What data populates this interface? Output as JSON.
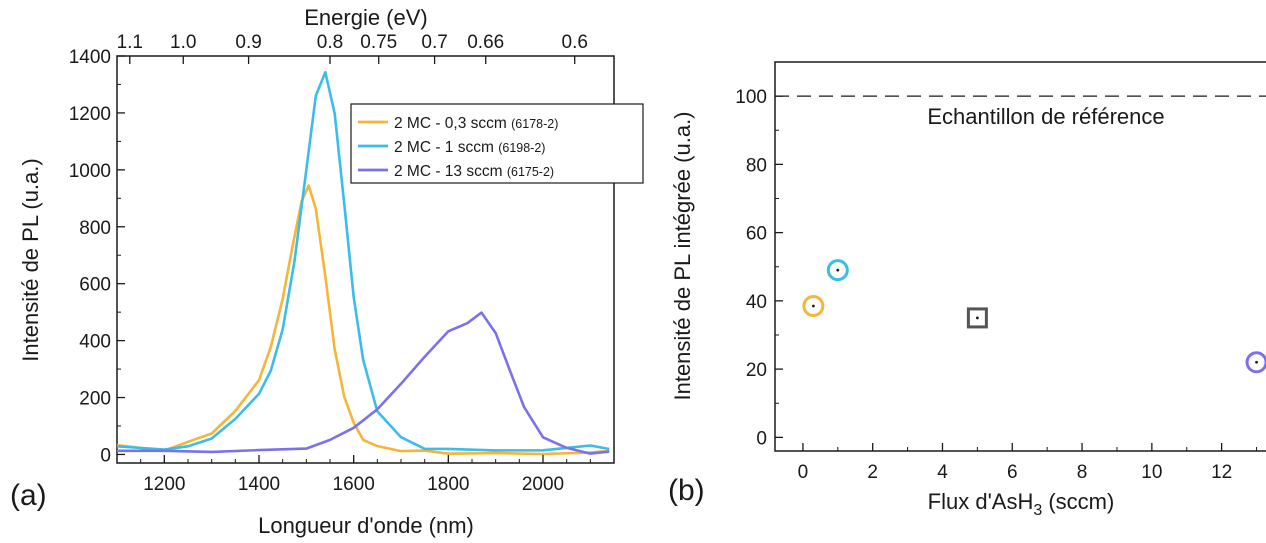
{
  "panel_a_label": "(a)",
  "panel_b_label": "(b)",
  "chart_data": [
    {
      "type": "line",
      "xlabel": "Longueur d'onde (nm)",
      "ylabel": "Intensité de PL (u.a.)",
      "x2label": "Energie (eV)",
      "xlim": [
        1100,
        2150
      ],
      "ylim": [
        -30,
        1400
      ],
      "xticks": [
        1200,
        1400,
        1600,
        1800,
        2000
      ],
      "yticks": [
        0,
        200,
        400,
        600,
        800,
        1000,
        1200,
        1400
      ],
      "x2ticks": [
        {
          "label": "1.1",
          "wavelength": 1127
        },
        {
          "label": "1.0",
          "wavelength": 1240
        },
        {
          "label": "0.9",
          "wavelength": 1378
        },
        {
          "label": "0.8",
          "wavelength": 1550
        },
        {
          "label": "0.75",
          "wavelength": 1653
        },
        {
          "label": "0.7",
          "wavelength": 1771
        },
        {
          "label": "0.66",
          "wavelength": 1879
        },
        {
          "label": "0.6",
          "wavelength": 2067
        }
      ],
      "legend_position": "top-right",
      "series": [
        {
          "name": "2 MC - 0,3 sccm",
          "sample": "(6178-2)",
          "color": "#f5b53a",
          "x": [
            1100,
            1200,
            1250,
            1300,
            1350,
            1400,
            1425,
            1450,
            1470,
            1490,
            1505,
            1520,
            1540,
            1560,
            1580,
            1600,
            1620,
            1650,
            1700,
            1750,
            1800,
            1900,
            2000,
            2100,
            2140
          ],
          "y": [
            22,
            22,
            35,
            75,
            150,
            260,
            380,
            540,
            720,
            890,
            955,
            870,
            620,
            380,
            210,
            110,
            60,
            28,
            15,
            10,
            8,
            6,
            5,
            5,
            5
          ]
        },
        {
          "name": "2 MC - 1 sccm",
          "sample": "(6198-2)",
          "color": "#3bbce9",
          "x": [
            1100,
            1200,
            1250,
            1300,
            1350,
            1400,
            1425,
            1450,
            1475,
            1500,
            1520,
            1540,
            1560,
            1580,
            1600,
            1620,
            1650,
            1700,
            1750,
            1800,
            1900,
            2000,
            2100,
            2140
          ],
          "y": [
            22,
            22,
            30,
            55,
            120,
            220,
            300,
            440,
            680,
            1000,
            1250,
            1345,
            1200,
            880,
            560,
            330,
            150,
            55,
            30,
            24,
            22,
            22,
            22,
            22
          ]
        },
        {
          "name": "2 MC - 13 sccm",
          "sample": "(6175-2)",
          "color": "#7b72ea",
          "x": [
            1100,
            1200,
            1300,
            1400,
            1500,
            1550,
            1600,
            1650,
            1700,
            1750,
            1800,
            1840,
            1870,
            1900,
            1930,
            1960,
            2000,
            2050,
            2100,
            2140
          ],
          "y": [
            3,
            4,
            6,
            12,
            30,
            52,
            95,
            160,
            250,
            345,
            430,
            470,
            505,
            420,
            300,
            170,
            70,
            22,
            12,
            10
          ]
        }
      ]
    },
    {
      "type": "scatter",
      "xlabel_prefix": "Flux d'AsH",
      "xlabel_sub": "3",
      "xlabel_suffix": " (sccm)",
      "ylabel": "Intensité de PL intégrée (u.a.)",
      "xlim": [
        -0.8,
        13.3
      ],
      "ylim": [
        -4,
        110
      ],
      "xticks": [
        0,
        2,
        4,
        6,
        8,
        10,
        12
      ],
      "yticks": [
        0,
        20,
        40,
        60,
        80,
        100
      ],
      "reference_line": {
        "y": 100,
        "label": "Echantillon de référence",
        "style": "dashed"
      },
      "points": [
        {
          "x": 0.3,
          "y": 38.5,
          "marker": "circle",
          "color": "#f5b53a"
        },
        {
          "x": 1.0,
          "y": 49.0,
          "marker": "circle",
          "color": "#3bbce9"
        },
        {
          "x": 5.0,
          "y": 35.0,
          "marker": "square",
          "color": "#555555"
        },
        {
          "x": 13.0,
          "y": 22.0,
          "marker": "circle",
          "color": "#7b72ea"
        }
      ]
    }
  ]
}
